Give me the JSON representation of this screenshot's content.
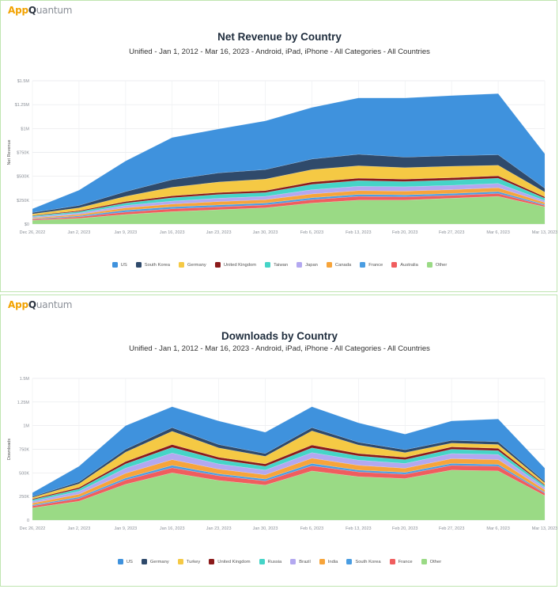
{
  "brand": {
    "app": "App",
    "q": "Q",
    "rest": "uantum"
  },
  "charts": [
    {
      "title": "Net Revenue by Country",
      "subtitle": "Unified - Jan 1, 2012 - Mar 16, 2023 - Android, iPad, iPhone - All Categories - All Countries",
      "ylabel": "Net Revenue"
    },
    {
      "title": "Downloads by Country",
      "subtitle": "Unified - Jan 1, 2012 - Mar 16, 2023 - Android, iPad, iPhone - All Categories - All Countries",
      "ylabel": "Downloads"
    }
  ],
  "chart_data": [
    {
      "type": "area",
      "stacked": true,
      "title": "Net Revenue by Country",
      "subtitle": "Unified - Jan 1, 2012 - Mar 16, 2023 - Android, iPad, iPhone - All Categories - All Countries",
      "xlabel": "",
      "ylabel": "Net Revenue",
      "ylim": [
        0,
        1500000
      ],
      "yticks": [
        0,
        250000,
        500000,
        750000,
        1000000,
        1250000,
        1500000
      ],
      "ytick_labels": [
        "$0",
        "$250K",
        "$500K",
        "$750K",
        "$1M",
        "$1.25M",
        "$1.5M"
      ],
      "categories": [
        "Dec 26, 2022",
        "Jan 2, 2023",
        "Jan 9, 2023",
        "Jan 16, 2023",
        "Jan 23, 2023",
        "Jan 30, 2023",
        "Feb 6, 2023",
        "Feb 13, 2023",
        "Feb 20, 2023",
        "Feb 27, 2023",
        "Mar 6, 2023",
        "Mar 13, 2023"
      ],
      "legend_position": "bottom",
      "series": [
        {
          "name": "Other",
          "color": "#9ada85",
          "values": [
            40000,
            60000,
            100000,
            130000,
            150000,
            170000,
            220000,
            250000,
            250000,
            270000,
            290000,
            180000
          ]
        },
        {
          "name": "Australia",
          "color": "#f05d5e",
          "values": [
            10000,
            15000,
            25000,
            30000,
            30000,
            30000,
            35000,
            40000,
            35000,
            30000,
            30000,
            15000
          ]
        },
        {
          "name": "France",
          "color": "#4a9de2",
          "values": [
            5000,
            10000,
            20000,
            20000,
            20000,
            20000,
            20000,
            20000,
            20000,
            20000,
            20000,
            10000
          ]
        },
        {
          "name": "Canada",
          "color": "#f7a43a",
          "values": [
            10000,
            15000,
            25000,
            30000,
            35000,
            35000,
            40000,
            40000,
            40000,
            40000,
            40000,
            20000
          ]
        },
        {
          "name": "Japan",
          "color": "#b3a8f0",
          "values": [
            10000,
            15000,
            25000,
            30000,
            35000,
            35000,
            45000,
            45000,
            45000,
            45000,
            45000,
            20000
          ]
        },
        {
          "name": "Taiwan",
          "color": "#45d4c7",
          "values": [
            10000,
            15000,
            25000,
            35000,
            40000,
            40000,
            55000,
            60000,
            55000,
            55000,
            55000,
            25000
          ]
        },
        {
          "name": "United Kingdom",
          "color": "#8b1a1a",
          "values": [
            5000,
            10000,
            15000,
            20000,
            20000,
            20000,
            25000,
            25000,
            25000,
            25000,
            25000,
            15000
          ]
        },
        {
          "name": "Germany",
          "color": "#f5c944",
          "values": [
            15000,
            30000,
            55000,
            90000,
            110000,
            120000,
            130000,
            130000,
            120000,
            120000,
            110000,
            50000
          ]
        },
        {
          "name": "South Korea",
          "color": "#2f4a6b",
          "values": [
            15000,
            25000,
            50000,
            80000,
            95000,
            100000,
            110000,
            120000,
            110000,
            110000,
            110000,
            40000
          ]
        },
        {
          "name": "US",
          "color": "#3f92dd",
          "values": [
            40000,
            160000,
            320000,
            440000,
            460000,
            510000,
            540000,
            590000,
            620000,
            630000,
            640000,
            360000
          ]
        }
      ]
    },
    {
      "type": "area",
      "stacked": true,
      "title": "Downloads by Country",
      "subtitle": "Unified - Jan 1, 2012 - Mar 16, 2023 - Android, iPad, iPhone - All Categories - All Countries",
      "xlabel": "",
      "ylabel": "Downloads",
      "ylim": [
        0,
        1500000
      ],
      "yticks": [
        0,
        250000,
        500000,
        750000,
        1000000,
        1250000,
        1500000
      ],
      "ytick_labels": [
        "0",
        "250K",
        "500K",
        "750K",
        "1M",
        "1.25M",
        "1.5M"
      ],
      "categories": [
        "Dec 26, 2022",
        "Jan 2, 2023",
        "Jan 9, 2023",
        "Jan 16, 2023",
        "Jan 23, 2023",
        "Jan 30, 2023",
        "Feb 6, 2023",
        "Feb 13, 2023",
        "Feb 20, 2023",
        "Feb 27, 2023",
        "Mar 6, 2023",
        "Mar 13, 2023"
      ],
      "legend_position": "bottom",
      "series": [
        {
          "name": "Other",
          "color": "#9ada85",
          "values": [
            130000,
            200000,
            380000,
            500000,
            420000,
            370000,
            520000,
            460000,
            440000,
            530000,
            520000,
            260000
          ]
        },
        {
          "name": "France",
          "color": "#f05d5e",
          "values": [
            20000,
            30000,
            45000,
            55000,
            50000,
            45000,
            55000,
            50000,
            45000,
            50000,
            50000,
            25000
          ]
        },
        {
          "name": "South Korea",
          "color": "#4a9de2",
          "values": [
            10000,
            15000,
            20000,
            25000,
            20000,
            20000,
            25000,
            20000,
            20000,
            20000,
            20000,
            10000
          ]
        },
        {
          "name": "India",
          "color": "#f7a43a",
          "values": [
            20000,
            30000,
            50000,
            60000,
            50000,
            45000,
            55000,
            50000,
            45000,
            50000,
            50000,
            25000
          ]
        },
        {
          "name": "Brazil",
          "color": "#b3a8f0",
          "values": [
            20000,
            30000,
            55000,
            70000,
            55000,
            50000,
            60000,
            55000,
            50000,
            55000,
            55000,
            25000
          ]
        },
        {
          "name": "Russia",
          "color": "#45d4c7",
          "values": [
            15000,
            25000,
            45000,
            60000,
            45000,
            40000,
            50000,
            45000,
            40000,
            45000,
            40000,
            20000
          ]
        },
        {
          "name": "United Kingdom",
          "color": "#8b1a1a",
          "values": [
            10000,
            15000,
            25000,
            30000,
            25000,
            25000,
            30000,
            25000,
            25000,
            25000,
            25000,
            10000
          ]
        },
        {
          "name": "Turkey",
          "color": "#f5c944",
          "values": [
            15000,
            40000,
            100000,
            140000,
            100000,
            80000,
            150000,
            90000,
            50000,
            40000,
            40000,
            20000
          ]
        },
        {
          "name": "Germany",
          "color": "#2f4a6b",
          "values": [
            10000,
            20000,
            30000,
            40000,
            35000,
            30000,
            35000,
            30000,
            30000,
            30000,
            30000,
            15000
          ]
        },
        {
          "name": "US",
          "color": "#3f92dd",
          "values": [
            40000,
            165000,
            250000,
            220000,
            250000,
            225000,
            220000,
            205000,
            165000,
            205000,
            240000,
            140000
          ]
        }
      ]
    }
  ]
}
